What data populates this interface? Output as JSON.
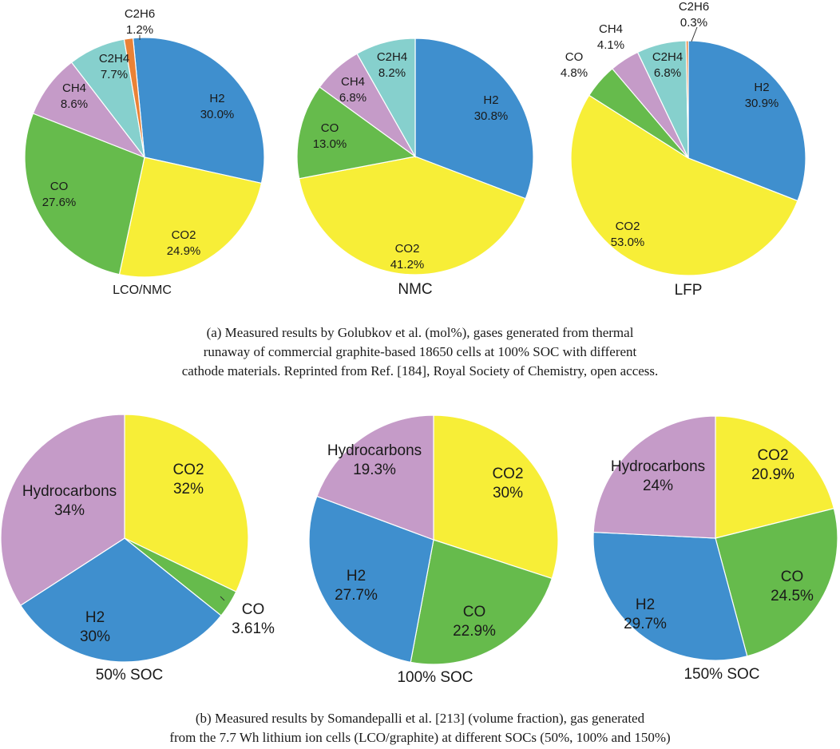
{
  "colors": {
    "H2": "#3f8fce",
    "CO2": "#f7ee37",
    "CO": "#66bb4c",
    "CH4": "#c59bc8",
    "C2H4": "#86d0cd",
    "C2H6": "#ea8236",
    "Hydrocarbons": "#c59bc8",
    "stroke": "#ffffff"
  },
  "chart_data": [
    {
      "type": "pie",
      "title": "LCO/NMC",
      "group": "a",
      "slices": [
        {
          "name": "H2",
          "value": 30.0,
          "label": "H2",
          "pct": "30.0%"
        },
        {
          "name": "CO2",
          "value": 24.9,
          "label": "CO2",
          "pct": "24.9%"
        },
        {
          "name": "CO",
          "value": 27.6,
          "label": "CO",
          "pct": "27.6%"
        },
        {
          "name": "CH4",
          "value": 8.6,
          "label": "CH4",
          "pct": "8.6%"
        },
        {
          "name": "C2H4",
          "value": 7.7,
          "label": "C2H4",
          "pct": "7.7%"
        },
        {
          "name": "C2H6",
          "value": 1.2,
          "label": "C2H6",
          "pct": "1.2%"
        }
      ]
    },
    {
      "type": "pie",
      "title": "NMC",
      "group": "a",
      "slices": [
        {
          "name": "H2",
          "value": 30.8,
          "label": "H2",
          "pct": "30.8%"
        },
        {
          "name": "CO2",
          "value": 41.2,
          "label": "CO2",
          "pct": "41.2%"
        },
        {
          "name": "CO",
          "value": 13.0,
          "label": "CO",
          "pct": "13.0%"
        },
        {
          "name": "CH4",
          "value": 6.8,
          "label": "CH4",
          "pct": "6.8%"
        },
        {
          "name": "C2H4",
          "value": 8.2,
          "label": "C2H4",
          "pct": "8.2%"
        }
      ]
    },
    {
      "type": "pie",
      "title": "LFP",
      "group": "a",
      "slices": [
        {
          "name": "H2",
          "value": 30.9,
          "label": "H2",
          "pct": "30.9%"
        },
        {
          "name": "CO2",
          "value": 53.0,
          "label": "CO2",
          "pct": "53.0%"
        },
        {
          "name": "CO",
          "value": 4.8,
          "label": "CO",
          "pct": "4.8%"
        },
        {
          "name": "CH4",
          "value": 4.1,
          "label": "CH4",
          "pct": "4.1%"
        },
        {
          "name": "C2H4",
          "value": 6.8,
          "label": "C2H4",
          "pct": "6.8%"
        },
        {
          "name": "C2H6",
          "value": 0.3,
          "label": "C2H6",
          "pct": "0.3%"
        }
      ]
    },
    {
      "type": "pie",
      "title": "50% SOC",
      "group": "b",
      "slices": [
        {
          "name": "CO2",
          "value": 32,
          "label": "CO2",
          "pct": "32%"
        },
        {
          "name": "CO",
          "value": 3.61,
          "label": "CO",
          "pct": "3.61%"
        },
        {
          "name": "H2",
          "value": 30,
          "label": "H2",
          "pct": "30%"
        },
        {
          "name": "Hydrocarbons",
          "value": 34,
          "label": "Hydrocarbons",
          "pct": "34%"
        }
      ]
    },
    {
      "type": "pie",
      "title": "100% SOC",
      "group": "b",
      "slices": [
        {
          "name": "CO2",
          "value": 30,
          "label": "CO2",
          "pct": "30%"
        },
        {
          "name": "CO",
          "value": 22.9,
          "label": "CO",
          "pct": "22.9%"
        },
        {
          "name": "H2",
          "value": 27.7,
          "label": "H2",
          "pct": "27.7%"
        },
        {
          "name": "Hydrocarbons",
          "value": 19.3,
          "label": "Hydrocarbons",
          "pct": "19.3%"
        }
      ]
    },
    {
      "type": "pie",
      "title": "150% SOC",
      "group": "b",
      "slices": [
        {
          "name": "CO2",
          "value": 20.9,
          "label": "CO2",
          "pct": "20.9%"
        },
        {
          "name": "CO",
          "value": 24.5,
          "label": "CO",
          "pct": "24.5%"
        },
        {
          "name": "H2",
          "value": 29.7,
          "label": "H2",
          "pct": "29.7%"
        },
        {
          "name": "Hydrocarbons",
          "value": 24,
          "label": "Hydrocarbons",
          "pct": "24%"
        }
      ]
    }
  ],
  "captions": {
    "a": [
      "(a) Measured results by Golubkov et al. (mol%), gases generated from thermal",
      "runaway of commercial graphite-based 18650 cells at 100% SOC with different",
      "cathode materials. Reprinted from Ref. [184], Royal Society of Chemistry, open access."
    ],
    "b": [
      "(b) Measured results by Somandepalli et al. [213] (volume fraction), gas generated",
      "from the 7.7 Wh lithium ion cells (LCO/graphite) at different SOCs (50%, 100% and 150%)"
    ]
  }
}
